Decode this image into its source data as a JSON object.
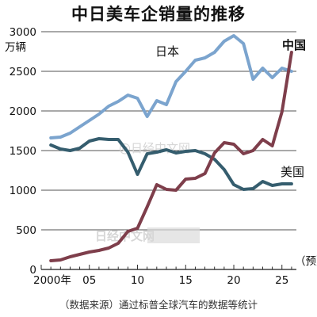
{
  "chart_data": {
    "type": "line",
    "title": "中日美车企销量的推移",
    "unit": "万辆",
    "source": "（数据来源）通过标普全球汽车的数据等统计",
    "forecast_label": "（预）",
    "xlim": [
      2000,
      2026.5
    ],
    "ylim": [
      0,
      3000
    ],
    "yticks": [
      0,
      500,
      1000,
      1500,
      2000,
      2500,
      3000
    ],
    "xtick_labels": [
      {
        "x": 2000,
        "label": "2000年"
      },
      {
        "x": 2005,
        "label": "05"
      },
      {
        "x": 2010,
        "label": "10"
      },
      {
        "x": 2015,
        "label": "15"
      },
      {
        "x": 2020,
        "label": "20"
      },
      {
        "x": 2025,
        "label": "25"
      }
    ],
    "x": [
      2001,
      2002,
      2003,
      2004,
      2005,
      2006,
      2007,
      2008,
      2009,
      2010,
      2011,
      2012,
      2013,
      2014,
      2015,
      2016,
      2017,
      2018,
      2019,
      2020,
      2021,
      2022,
      2023,
      2024,
      2025,
      2026
    ],
    "series": [
      {
        "name": "日本",
        "color": "#7ba4ce",
        "label_pos": "mid",
        "values": [
          1660,
          1670,
          1720,
          1800,
          1880,
          1960,
          2060,
          2120,
          2200,
          2160,
          1930,
          2130,
          2080,
          2370,
          2500,
          2640,
          2670,
          2740,
          2880,
          2950,
          2850,
          2400,
          2540,
          2420,
          2540,
          2500
        ]
      },
      {
        "name": "美国",
        "color": "#355d6e",
        "label_pos": "end",
        "values": [
          1570,
          1520,
          1500,
          1530,
          1620,
          1650,
          1640,
          1640,
          1480,
          1200,
          1460,
          1480,
          1510,
          1470,
          1490,
          1500,
          1460,
          1390,
          1260,
          1070,
          1010,
          1020,
          1110,
          1060,
          1080,
          1080
        ]
      },
      {
        "name": "中国",
        "color": "#7e3e4b",
        "label_pos": "end_top",
        "bold": true,
        "values": [
          110,
          120,
          160,
          190,
          220,
          240,
          270,
          330,
          480,
          520,
          790,
          1070,
          1010,
          1000,
          1140,
          1150,
          1210,
          1470,
          1600,
          1580,
          1460,
          1500,
          1640,
          1560,
          1990,
          2740
        ]
      }
    ]
  },
  "watermarks": [
    "日经中文网",
    "@日经中文网"
  ]
}
